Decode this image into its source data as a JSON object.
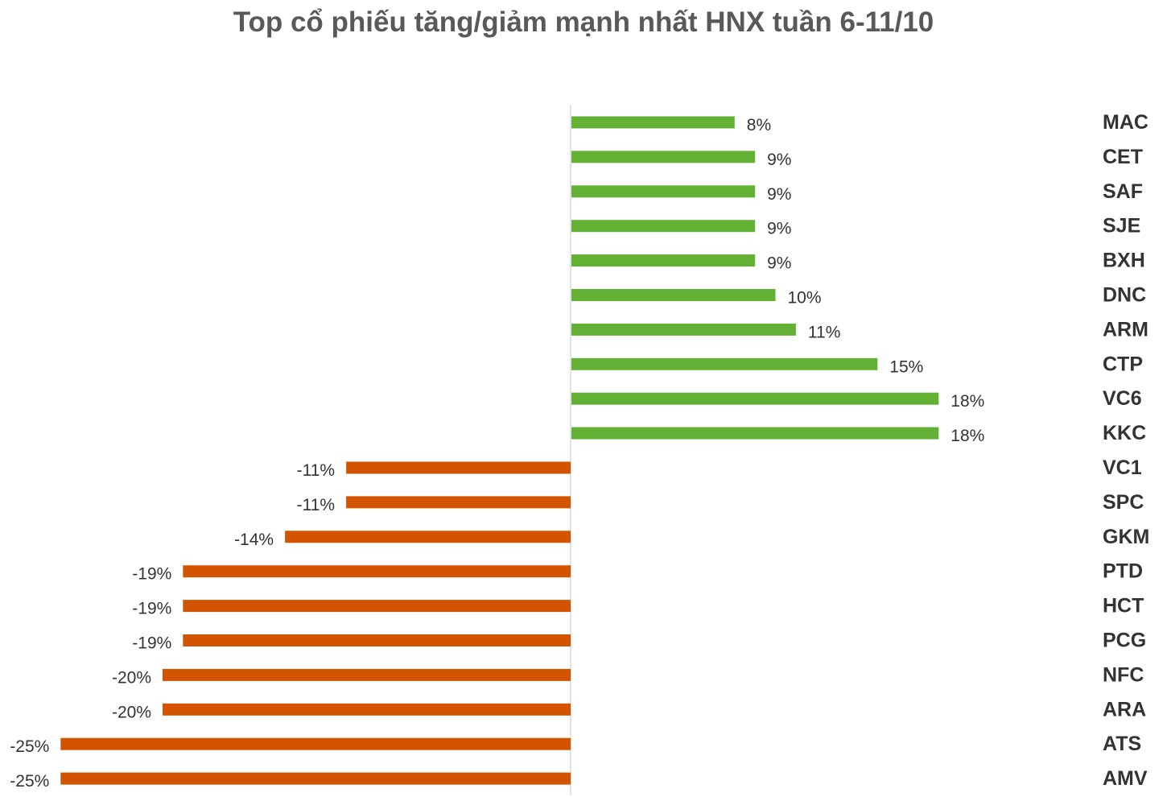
{
  "chart_data": {
    "type": "bar",
    "orientation": "horizontal",
    "title": "Top cổ phiếu tăng/giảm mạnh nhất HNX tuần 6-11/10",
    "categories": [
      "MAC",
      "CET",
      "SAF",
      "SJE",
      "BXH",
      "DNC",
      "ARM",
      "CTP",
      "VC6",
      "KKC",
      "VC1",
      "SPC",
      "GKM",
      "PTD",
      "HCT",
      "PCG",
      "NFC",
      "ARA",
      "ATS",
      "AMV"
    ],
    "values": [
      8,
      9,
      9,
      9,
      9,
      10,
      11,
      15,
      18,
      18,
      -11,
      -11,
      -14,
      -19,
      -19,
      -19,
      -20,
      -20,
      -25,
      -25
    ],
    "data_labels": [
      "8%",
      "9%",
      "9%",
      "9%",
      "9%",
      "10%",
      "11%",
      "15%",
      "18%",
      "18%",
      "-11%",
      "-11%",
      "-14%",
      "-19%",
      "-19%",
      "-19%",
      "-20%",
      "-20%",
      "-25%",
      "-25%"
    ],
    "unit": "%",
    "xlim": [
      -25,
      25
    ],
    "positive_color": "#62B135",
    "negative_color": "#D35400",
    "axis_color": "#D9D9D9",
    "grid": false,
    "legend": "none",
    "category_labels_position": "right"
  }
}
